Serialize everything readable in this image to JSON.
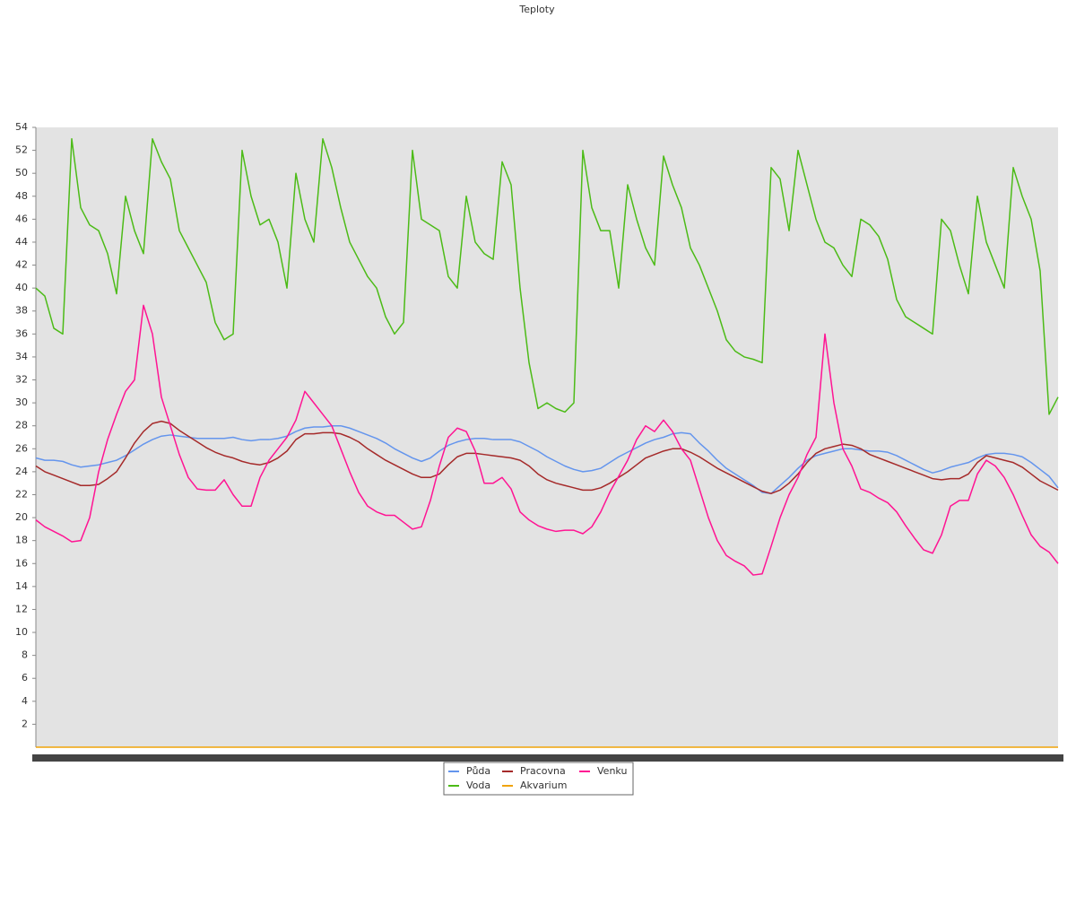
{
  "chart_data": {
    "type": "line",
    "title": "Teploty",
    "categories": [
      null,
      null,
      null,
      null,
      null,
      null,
      null,
      null,
      null,
      null,
      null,
      null,
      null,
      null,
      null,
      null,
      null,
      null,
      null,
      null,
      null,
      null,
      null,
      null,
      null,
      null,
      null,
      null,
      null,
      null,
      null,
      null,
      null,
      null,
      null,
      null,
      null,
      null,
      null,
      null,
      null,
      null,
      null,
      null,
      null,
      null,
      null,
      null,
      null,
      null,
      null,
      null,
      null,
      null,
      null,
      null,
      null,
      null,
      null,
      null,
      null,
      null,
      null,
      null,
      null,
      null,
      null,
      null,
      null,
      null,
      null,
      null,
      null,
      null,
      null,
      null,
      null,
      null,
      null,
      null,
      null,
      null,
      null,
      null,
      null,
      null,
      null,
      null,
      null,
      null,
      null,
      null,
      null,
      null,
      null,
      null,
      null,
      null,
      null,
      null,
      null,
      null,
      null,
      null,
      null,
      null,
      null,
      null,
      null,
      null,
      null,
      null,
      null,
      null,
      null
    ],
    "ylim": [
      0,
      54
    ],
    "yticks": [
      2,
      4,
      6,
      8,
      10,
      12,
      14,
      16,
      18,
      20,
      22,
      24,
      26,
      28,
      30,
      32,
      34,
      36,
      38,
      40,
      42,
      44,
      46,
      48,
      50,
      52,
      54
    ],
    "grid": false,
    "legend": "bottom",
    "series": [
      {
        "name": "Půda",
        "color": "#6495ed",
        "values": [
          25.2,
          25,
          25,
          24.9,
          24.6,
          24.4,
          24.5,
          24.6,
          24.8,
          25,
          25.4,
          25.9,
          26.4,
          26.8,
          27.1,
          27.2,
          27.1,
          27,
          26.9,
          26.9,
          26.9,
          26.9,
          27,
          26.8,
          26.7,
          26.8,
          26.8,
          26.9,
          27.1,
          27.5,
          27.8,
          27.9,
          27.9,
          28,
          28,
          27.8,
          27.5,
          27.2,
          26.9,
          26.5,
          26,
          25.6,
          25.2,
          24.9,
          25.2,
          25.8,
          26.3,
          26.6,
          26.8,
          26.9,
          26.9,
          26.8,
          26.8,
          26.8,
          26.6,
          26.2,
          25.8,
          25.3,
          24.9,
          24.5,
          24.2,
          24,
          24.1,
          24.3,
          24.8,
          25.3,
          25.7,
          26.1,
          26.5,
          26.8,
          27,
          27.3,
          27.4,
          27.3,
          26.5,
          25.8,
          25,
          24.3,
          23.8,
          23.3,
          22.8,
          22.2,
          22.1,
          22.8,
          23.5,
          24.3,
          25,
          25.4,
          25.6,
          25.8,
          26,
          26,
          25.9,
          25.8,
          25.8,
          25.7,
          25.4,
          25,
          24.6,
          24.2,
          23.9,
          24.1,
          24.4,
          24.6,
          24.8,
          25.2,
          25.5,
          25.6,
          25.6,
          25.5,
          25.3,
          24.8,
          24.2,
          23.6,
          22.6
        ]
      },
      {
        "name": "Pracovna",
        "color": "#a52a2a",
        "values": [
          24.5,
          24,
          23.7,
          23.4,
          23.1,
          22.8,
          22.8,
          22.9,
          23.4,
          24,
          25.2,
          26.5,
          27.5,
          28.2,
          28.4,
          28.2,
          27.6,
          27.1,
          26.6,
          26.1,
          25.7,
          25.4,
          25.2,
          24.9,
          24.7,
          24.6,
          24.8,
          25.2,
          25.8,
          26.8,
          27.3,
          27.3,
          27.4,
          27.4,
          27.3,
          27,
          26.6,
          26,
          25.5,
          25,
          24.6,
          24.2,
          23.8,
          23.5,
          23.5,
          23.8,
          24.6,
          25.3,
          25.6,
          25.6,
          25.5,
          25.4,
          25.3,
          25.2,
          25,
          24.5,
          23.8,
          23.3,
          23,
          22.8,
          22.6,
          22.4,
          22.4,
          22.6,
          23,
          23.5,
          24,
          24.6,
          25.2,
          25.5,
          25.8,
          26,
          26,
          25.7,
          25.3,
          24.8,
          24.3,
          23.9,
          23.5,
          23.1,
          22.7,
          22.3,
          22.1,
          22.4,
          23,
          23.8,
          24.8,
          25.6,
          26,
          26.2,
          26.4,
          26.3,
          26,
          25.5,
          25.2,
          24.9,
          24.6,
          24.3,
          24,
          23.7,
          23.4,
          23.3,
          23.4,
          23.4,
          23.8,
          24.8,
          25.4,
          25.2,
          25,
          24.8,
          24.4,
          23.8,
          23.2,
          22.8,
          22.4
        ]
      },
      {
        "name": "Venku",
        "color": "#ff1493",
        "values": [
          19.8,
          19.2,
          18.8,
          18.4,
          17.9,
          18,
          20,
          24,
          26.8,
          29,
          31,
          32,
          38.5,
          36,
          30.5,
          28,
          25.5,
          23.5,
          22.5,
          22.4,
          22.4,
          23.3,
          22,
          21,
          21,
          23.5,
          25,
          26,
          27,
          28.5,
          31,
          30,
          29,
          28,
          26,
          24,
          22.2,
          21,
          20.5,
          20.2,
          20.2,
          19.6,
          19,
          19.2,
          21.5,
          24.5,
          27,
          27.8,
          27.5,
          25.8,
          23,
          23,
          23.5,
          22.5,
          20.5,
          19.8,
          19.3,
          19,
          18.8,
          18.9,
          18.9,
          18.6,
          19.2,
          20.5,
          22.2,
          23.6,
          25,
          26.8,
          28,
          27.5,
          28.5,
          27.5,
          26,
          25,
          22.5,
          20,
          18,
          16.7,
          16.2,
          15.8,
          15,
          15.1,
          17.5,
          20,
          22,
          23.5,
          25.5,
          27,
          36,
          30,
          26,
          24.5,
          22.5,
          22.2,
          21.7,
          21.3,
          20.5,
          19.3,
          18.2,
          17.2,
          16.9,
          18.5,
          21,
          21.5,
          21.5,
          23.8,
          25,
          24.5,
          23.5,
          22,
          20.2,
          18.5,
          17.5,
          17,
          16
        ]
      },
      {
        "name": "Voda",
        "color": "#4cbb17",
        "values": [
          40,
          39.3,
          36.5,
          36,
          53,
          47,
          45.5,
          45,
          43,
          39.5,
          48,
          45,
          43,
          53,
          51,
          49.5,
          45,
          43.5,
          42,
          40.5,
          37,
          35.5,
          36,
          52,
          48,
          45.5,
          46,
          44,
          40,
          50,
          46,
          44,
          53,
          50.5,
          47,
          44,
          42.5,
          41,
          40,
          37.5,
          36,
          37,
          52,
          46,
          45.5,
          45,
          41,
          40,
          48,
          44,
          43,
          42.5,
          51,
          49,
          40,
          33.5,
          29.5,
          30,
          29.5,
          29.2,
          30,
          52,
          47,
          45,
          45,
          40,
          49,
          46,
          43.5,
          42,
          51.5,
          49,
          47,
          43.5,
          42,
          40,
          38,
          35.5,
          34.5,
          34,
          33.8,
          33.5,
          50.5,
          49.5,
          45,
          52,
          49,
          46,
          44,
          43.5,
          42,
          41,
          46,
          45.5,
          44.5,
          42.5,
          39,
          37.5,
          37,
          36.5,
          36,
          46,
          45,
          42,
          39.5,
          48,
          44,
          42,
          40,
          50.5,
          48,
          46,
          41.5,
          29,
          30.5
        ]
      },
      {
        "name": "Akvarium",
        "color": "#f0a30a",
        "values": [
          0,
          0,
          0,
          0,
          0,
          0,
          0,
          0,
          0,
          0,
          0,
          0,
          0,
          0,
          0,
          0,
          0,
          0,
          0,
          0,
          0,
          0,
          0,
          0,
          0,
          0,
          0,
          0,
          0,
          0,
          0,
          0,
          0,
          0,
          0,
          0,
          0,
          0,
          0,
          0,
          0,
          0,
          0,
          0,
          0,
          0,
          0,
          0,
          0,
          0,
          0,
          0,
          0,
          0,
          0,
          0,
          0,
          0,
          0,
          0,
          0,
          0,
          0,
          0,
          0,
          0,
          0,
          0,
          0,
          0,
          0,
          0,
          0,
          0,
          0,
          0,
          0,
          0,
          0,
          0,
          0,
          0,
          0,
          0,
          0,
          0,
          0,
          0,
          0,
          0,
          0,
          0,
          0,
          0,
          0,
          0,
          0,
          0,
          0,
          0,
          0,
          0,
          0,
          0,
          0,
          0,
          0,
          0,
          0,
          0,
          0,
          0,
          0,
          0,
          0
        ]
      }
    ]
  }
}
